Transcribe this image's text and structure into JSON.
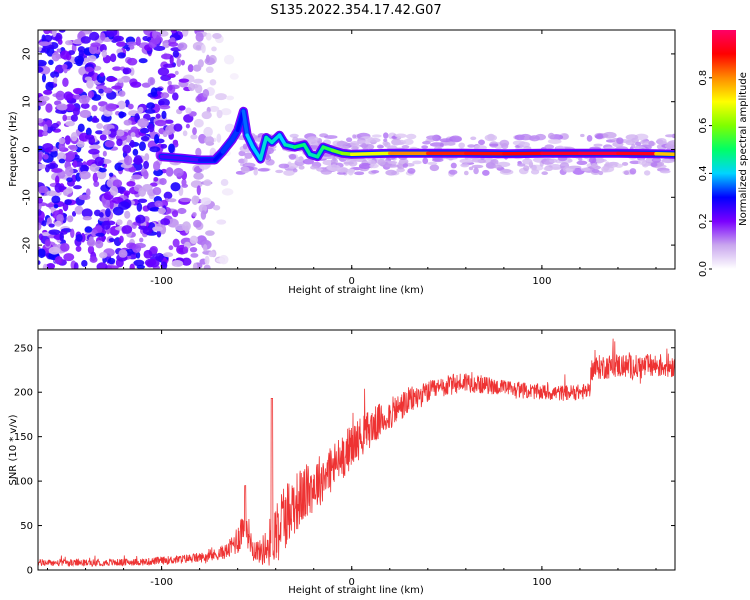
{
  "chart_data": [
    {
      "type": "heatmap",
      "title": "S135.2022.354.17.42.G07",
      "xlabel": "Height of straight line (km)",
      "ylabel": "Frequency (Hz)",
      "xlim": [
        -165,
        170
      ],
      "ylim": [
        -25,
        25
      ],
      "xticks": [
        -100,
        0,
        100
      ],
      "xtick_labels": [
        "-100",
        "0",
        "100"
      ],
      "yticks": [
        -20,
        -10,
        0,
        10,
        20
      ],
      "ytick_labels": [
        "-20",
        "-10",
        "0",
        "10",
        "20"
      ],
      "colorbar": {
        "label": "Normalized spectral amplitude",
        "range": [
          0,
          1
        ],
        "ticks": [
          0.0,
          0.2,
          0.4,
          0.6,
          0.8
        ],
        "tick_labels": [
          "0.0",
          "0.2",
          "0.4",
          "0.6",
          "0.8"
        ],
        "colors": [
          "#ffffff",
          "#c9a6ee",
          "#7a00ff",
          "#0000ff",
          "#00d4ff",
          "#00ff66",
          "#7fff00",
          "#ffff00",
          "#ff8c00",
          "#ff0000",
          "#ff0066"
        ]
      },
      "noise_region_x": [
        -165,
        -60
      ],
      "signal_track": {
        "x": [
          -100,
          -90,
          -80,
          -72,
          -68,
          -63,
          -60,
          -57,
          -55,
          -52,
          -48,
          -45,
          -42,
          -38,
          -35,
          -30,
          -25,
          -22,
          -18,
          -15,
          -10,
          -5,
          0,
          20,
          40,
          60,
          80,
          100,
          120,
          140,
          160,
          170
        ],
        "freq": [
          -1.5,
          -1.8,
          -2.2,
          -2.2,
          -0.5,
          2.0,
          4.0,
          8.0,
          3.0,
          0.5,
          -2.0,
          2.5,
          1.5,
          3.0,
          1.0,
          0.5,
          1.0,
          -1.0,
          -1.5,
          0.5,
          -0.2,
          -0.8,
          -1.0,
          -0.8,
          -0.8,
          -0.8,
          -0.9,
          -0.8,
          -0.8,
          -0.8,
          -0.9,
          -1.0
        ],
        "amplitude": [
          0.25,
          0.22,
          0.25,
          0.3,
          0.3,
          0.35,
          0.3,
          0.3,
          0.4,
          0.4,
          0.4,
          0.45,
          0.45,
          0.4,
          0.4,
          0.5,
          0.5,
          0.45,
          0.45,
          0.5,
          0.55,
          0.6,
          0.62,
          0.75,
          0.85,
          0.9,
          0.88,
          0.92,
          0.95,
          0.95,
          0.9,
          0.6
        ]
      }
    },
    {
      "type": "line",
      "xlabel": "Height of straight line (km)",
      "ylabel": "SNR (10 * v/v)",
      "xlim": [
        -165,
        170
      ],
      "ylim": [
        0,
        270
      ],
      "xticks": [
        -100,
        0,
        100
      ],
      "xtick_labels": [
        "-100",
        "0",
        "100"
      ],
      "yticks": [
        0,
        50,
        100,
        150,
        200,
        250
      ],
      "ytick_labels": [
        "0",
        "50",
        "100",
        "150",
        "200",
        "250"
      ],
      "series": [
        {
          "name": "SNR",
          "color": "#ee3333",
          "x": [
            -165,
            -140,
            -110,
            -90,
            -75,
            -65,
            -60,
            -56,
            -52,
            -48,
            -44,
            -40,
            -36,
            -30,
            -20,
            -10,
            0,
            10,
            20,
            30,
            40,
            50,
            60,
            70,
            80,
            90,
            100,
            110,
            120,
            125,
            126,
            130,
            140,
            150,
            160,
            170
          ],
          "y": [
            8,
            8,
            9,
            12,
            15,
            22,
            35,
            55,
            25,
            20,
            28,
            45,
            60,
            75,
            95,
            115,
            140,
            160,
            175,
            190,
            200,
            207,
            212,
            208,
            205,
            202,
            200,
            199,
            200,
            201,
            225,
            228,
            230,
            228,
            230,
            230
          ],
          "noise": [
            4,
            4,
            4,
            5,
            6,
            9,
            18,
            25,
            12,
            14,
            25,
            35,
            40,
            35,
            30,
            28,
            25,
            22,
            18,
            16,
            12,
            12,
            12,
            10,
            9,
            9,
            9,
            9,
            9,
            9,
            14,
            14,
            14,
            14,
            14,
            14
          ]
        }
      ],
      "annotations": [
        {
          "x": -42,
          "y": 193,
          "text": ""
        },
        {
          "x": -56,
          "y": 95,
          "text": ""
        }
      ]
    }
  ]
}
